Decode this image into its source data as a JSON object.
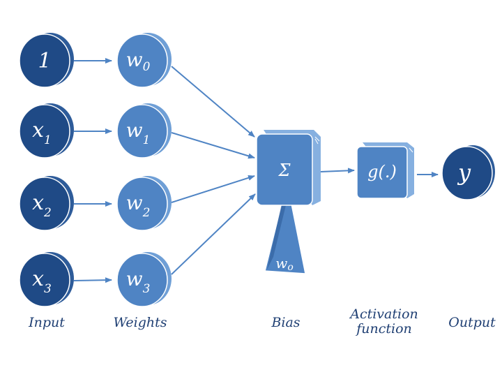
{
  "colors": {
    "input_node": "#1f4a86",
    "input_node_back": "#2e5c9a",
    "weight_node": "#4f84c4",
    "weight_node_back": "#6f9fd6",
    "box": "#4f84c4",
    "box_side": "#86b0e0",
    "arrow": "#4f84c4",
    "caption": "#1f3f73"
  },
  "inputs": [
    {
      "base": "1",
      "sub": ""
    },
    {
      "base": "x",
      "sub": "1"
    },
    {
      "base": "x",
      "sub": "2"
    },
    {
      "base": "x",
      "sub": "3"
    }
  ],
  "weights": [
    {
      "base": "w",
      "sub": "0"
    },
    {
      "base": "w",
      "sub": "1"
    },
    {
      "base": "w",
      "sub": "2"
    },
    {
      "base": "w",
      "sub": "3"
    }
  ],
  "sum_symbol": "Σ",
  "bias": {
    "base": "w",
    "sub": "o"
  },
  "activation": "g(.)",
  "output": "y",
  "captions": {
    "input": "Input",
    "weights": "Weights",
    "bias": "Bias",
    "activation_line1": "Activation",
    "activation_line2": "function",
    "output": "Output"
  }
}
